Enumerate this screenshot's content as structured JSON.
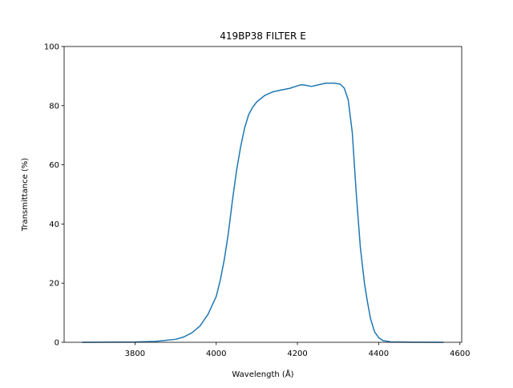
{
  "chart_data": {
    "type": "line",
    "title": "419BP38 FILTER E",
    "x_label": "Wavelength (Å)",
    "y_label": "Transmittance (%)",
    "x": [
      3670,
      3800,
      3850,
      3900,
      3920,
      3940,
      3960,
      3980,
      4000,
      4010,
      4020,
      4030,
      4040,
      4050,
      4060,
      4070,
      4080,
      4090,
      4100,
      4120,
      4140,
      4160,
      4180,
      4200,
      4210,
      4220,
      4235,
      4250,
      4270,
      4290,
      4305,
      4315,
      4325,
      4335,
      4345,
      4355,
      4365,
      4372,
      4380,
      4390,
      4400,
      4410,
      4430,
      4480,
      4560
    ],
    "series": [
      {
        "name": "Transmittance",
        "color": "#1f77b4",
        "values": [
          0,
          0.1,
          0.3,
          1.0,
          1.8,
          3.2,
          5.5,
          9.5,
          15.5,
          21,
          28,
          37,
          48,
          58,
          66,
          72.5,
          77,
          79.5,
          81.3,
          83.5,
          84.7,
          85.3,
          85.8,
          86.7,
          87.1,
          86.9,
          86.5,
          87,
          87.6,
          87.6,
          87.3,
          86,
          82,
          71,
          50,
          32,
          20,
          14,
          8,
          3.5,
          1.6,
          0.6,
          0.15,
          0.05,
          0
        ]
      }
    ],
    "xlim": [
      3625.5,
      4604.5
    ],
    "ylim": [
      0,
      100
    ],
    "xticks": [
      3800,
      4000,
      4200,
      4400,
      4600
    ],
    "yticks": [
      0,
      20,
      40,
      60,
      80,
      100
    ]
  }
}
